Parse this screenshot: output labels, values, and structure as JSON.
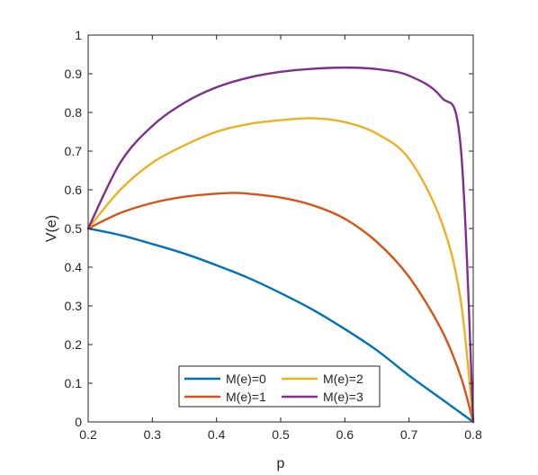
{
  "chart_data": {
    "type": "line",
    "xlabel": "p",
    "ylabel": "V(e)",
    "xlim": [
      0.2,
      0.8
    ],
    "ylim": [
      0,
      1
    ],
    "xticks": [
      "0.2",
      "0.3",
      "0.4",
      "0.5",
      "0.6",
      "0.7",
      "0.8"
    ],
    "yticks": [
      "0",
      "0.1",
      "0.2",
      "0.3",
      "0.4",
      "0.5",
      "0.6",
      "0.7",
      "0.8",
      "0.9",
      "1"
    ],
    "grid": false,
    "legend_position": "bottom-center",
    "legend_columns": 2,
    "series": [
      {
        "name": "M(e)=0",
        "color": "#0072BD",
        "x": [
          0.2,
          0.25,
          0.3,
          0.35,
          0.4,
          0.45,
          0.5,
          0.55,
          0.6,
          0.65,
          0.7,
          0.75,
          0.8
        ],
        "y": [
          0.5,
          0.483,
          0.46,
          0.435,
          0.405,
          0.372,
          0.333,
          0.29,
          0.24,
          0.185,
          0.12,
          0.06,
          0.0
        ]
      },
      {
        "name": "M(e)=1",
        "color": "#D95319",
        "x": [
          0.2,
          0.25,
          0.3,
          0.35,
          0.4,
          0.43,
          0.45,
          0.5,
          0.55,
          0.6,
          0.65,
          0.7,
          0.75,
          0.78,
          0.8
        ],
        "y": [
          0.5,
          0.54,
          0.566,
          0.582,
          0.59,
          0.592,
          0.59,
          0.58,
          0.56,
          0.525,
          0.465,
          0.375,
          0.24,
          0.12,
          0.0
        ]
      },
      {
        "name": "M(e)=2",
        "color": "#EDB120",
        "x": [
          0.2,
          0.25,
          0.3,
          0.35,
          0.4,
          0.45,
          0.5,
          0.55,
          0.6,
          0.65,
          0.7,
          0.75,
          0.78,
          0.8
        ],
        "y": [
          0.5,
          0.6,
          0.67,
          0.715,
          0.75,
          0.77,
          0.78,
          0.785,
          0.775,
          0.745,
          0.68,
          0.52,
          0.32,
          0.0
        ]
      },
      {
        "name": "M(e)=3",
        "color": "#7E2F8E",
        "x": [
          0.2,
          0.25,
          0.3,
          0.35,
          0.4,
          0.45,
          0.5,
          0.55,
          0.6,
          0.65,
          0.7,
          0.75,
          0.78,
          0.8
        ],
        "y": [
          0.5,
          0.67,
          0.765,
          0.825,
          0.865,
          0.89,
          0.905,
          0.913,
          0.916,
          0.912,
          0.895,
          0.84,
          0.72,
          0.0
        ]
      }
    ]
  }
}
